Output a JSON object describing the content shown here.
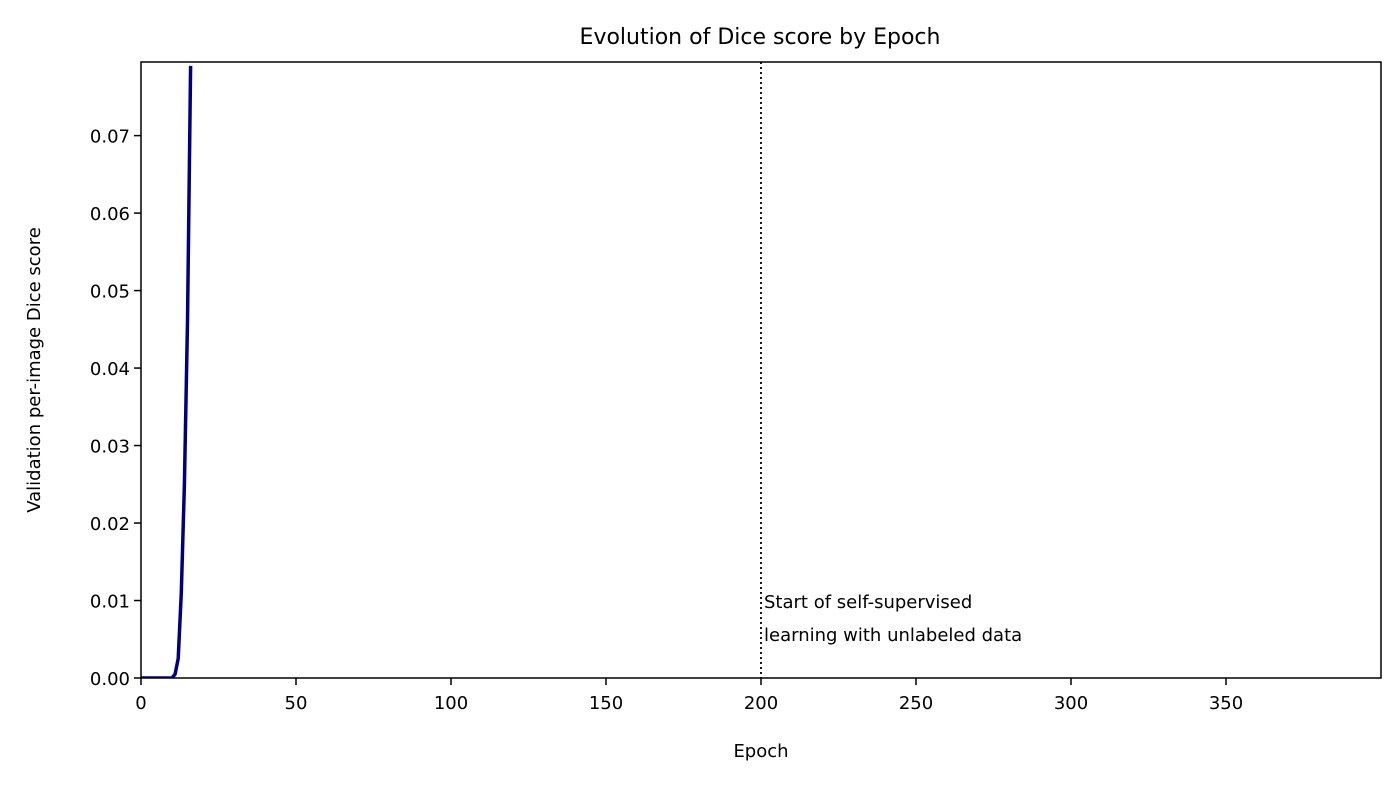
{
  "chart_data": {
    "type": "line",
    "title": "Evolution of Dice score by Epoch",
    "xlabel": "Epoch",
    "ylabel": "Validation per-image Dice score",
    "xlim": [
      0,
      400
    ],
    "ylim": [
      0,
      0.0795
    ],
    "xticks": [
      0,
      50,
      100,
      150,
      200,
      250,
      300,
      350
    ],
    "yticks": [
      0.0,
      0.01,
      0.02,
      0.03,
      0.04,
      0.05,
      0.06,
      0.07
    ],
    "grid": false,
    "series": [
      {
        "color": "#00007f",
        "x": [
          0,
          5,
          10,
          11,
          12,
          13,
          14,
          15,
          16
        ],
        "y": [
          0.0,
          0.0,
          0.0,
          0.0005,
          0.0025,
          0.011,
          0.025,
          0.046,
          0.079
        ]
      }
    ],
    "vline": {
      "x": 200,
      "style": "dotted",
      "label_lines": [
        "Start of self-supervised",
        "learning with unlabeled data"
      ]
    }
  }
}
